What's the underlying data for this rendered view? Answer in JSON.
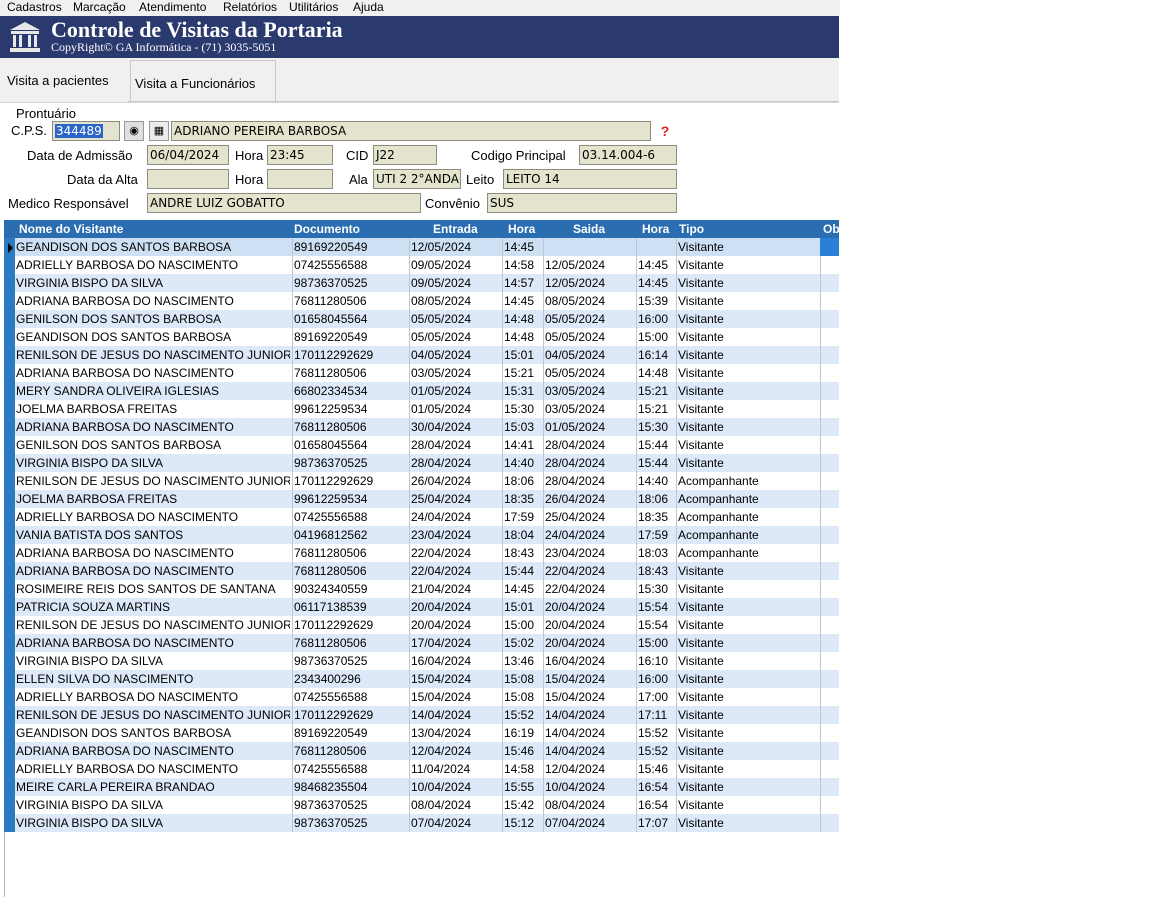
{
  "menu": [
    "Cadastros",
    "Marcação",
    "Atendimento",
    "Relatórios",
    "Utilitários",
    "Ajuda"
  ],
  "header": {
    "title": "Controle de Visitas da Portaria",
    "subtitle": "CopyRight© GA Informática - (71) 3035-5051"
  },
  "tabs": [
    "Visita a pacientes",
    "Visita a Funcionários"
  ],
  "form": {
    "group_label": "Prontuário",
    "cps_label": "C.P.S.",
    "cps_value": "344489",
    "patient_name": "ADRIANO PEREIRA BARBOSA",
    "admission_label": "Data de Admissão",
    "admission_date": "06/04/2024",
    "hora_label": "Hora",
    "admission_time": "23:45",
    "cid_label": "CID",
    "cid_value": "J22",
    "codigo_label": "Codigo Principal",
    "codigo_value": "03.14.004-6",
    "alta_label": "Data da Alta",
    "alta_date": "",
    "alta_hora_label": "Hora",
    "alta_time": "",
    "ala_label": "Ala",
    "ala_value": "UTI 2 2°ANDA",
    "leito_label": "Leito",
    "leito_value": "LEITO 14",
    "medico_label": "Medico Responsável",
    "medico_value": "ANDRE LUIZ GOBATTO",
    "convenio_label": "Convênio",
    "convenio_value": "SUS"
  },
  "grid": {
    "columns": [
      "Nome do Visitante",
      "Documento",
      "Entrada",
      "Hora",
      "Saida",
      "Hora",
      "Tipo",
      "Ob"
    ],
    "rows": [
      [
        "GEANDISON DOS SANTOS BARBOSA",
        "89169220549",
        "12/05/2024",
        "14:45",
        "",
        "",
        "Visitante"
      ],
      [
        "ADRIELLY BARBOSA DO NASCIMENTO",
        "07425556588",
        "09/05/2024",
        "14:58",
        "12/05/2024",
        "14:45",
        "Visitante"
      ],
      [
        "VIRGINIA BISPO DA SILVA",
        "98736370525",
        "09/05/2024",
        "14:57",
        "12/05/2024",
        "14:45",
        "Visitante"
      ],
      [
        "ADRIANA BARBOSA DO NASCIMENTO",
        "76811280506",
        "08/05/2024",
        "14:45",
        "08/05/2024",
        "15:39",
        "Visitante"
      ],
      [
        "GENILSON DOS SANTOS BARBOSA",
        "01658045564",
        "05/05/2024",
        "14:48",
        "05/05/2024",
        "16:00",
        "Visitante"
      ],
      [
        "GEANDISON DOS SANTOS BARBOSA",
        "89169220549",
        "05/05/2024",
        "14:48",
        "05/05/2024",
        "15:00",
        "Visitante"
      ],
      [
        "RENILSON DE JESUS DO NASCIMENTO JUNIOR",
        "170112292629",
        "04/05/2024",
        "15:01",
        "04/05/2024",
        "16:14",
        "Visitante"
      ],
      [
        "ADRIANA BARBOSA DO NASCIMENTO",
        "76811280506",
        "03/05/2024",
        "15:21",
        "05/05/2024",
        "14:48",
        "Visitante"
      ],
      [
        "MERY SANDRA OLIVEIRA IGLESIAS",
        "66802334534",
        "01/05/2024",
        "15:31",
        "03/05/2024",
        "15:21",
        "Visitante"
      ],
      [
        "JOELMA BARBOSA FREITAS",
        "99612259534",
        "01/05/2024",
        "15:30",
        "03/05/2024",
        "15:21",
        "Visitante"
      ],
      [
        "ADRIANA BARBOSA DO NASCIMENTO",
        "76811280506",
        "30/04/2024",
        "15:03",
        "01/05/2024",
        "15:30",
        "Visitante"
      ],
      [
        "GENILSON DOS SANTOS BARBOSA",
        "01658045564",
        "28/04/2024",
        "14:41",
        "28/04/2024",
        "15:44",
        "Visitante"
      ],
      [
        "VIRGINIA BISPO DA SILVA",
        "98736370525",
        "28/04/2024",
        "14:40",
        "28/04/2024",
        "15:44",
        "Visitante"
      ],
      [
        "RENILSON DE JESUS DO NASCIMENTO JUNIOR",
        "170112292629",
        "26/04/2024",
        "18:06",
        "28/04/2024",
        "14:40",
        "Acompanhante"
      ],
      [
        "JOELMA BARBOSA FREITAS",
        "99612259534",
        "25/04/2024",
        "18:35",
        "26/04/2024",
        "18:06",
        "Acompanhante"
      ],
      [
        "ADRIELLY BARBOSA DO NASCIMENTO",
        "07425556588",
        "24/04/2024",
        "17:59",
        "25/04/2024",
        "18:35",
        "Acompanhante"
      ],
      [
        "VANIA BATISTA DOS SANTOS",
        "04196812562",
        "23/04/2024",
        "18:04",
        "24/04/2024",
        "17:59",
        "Acompanhante"
      ],
      [
        "ADRIANA BARBOSA DO NASCIMENTO",
        "76811280506",
        "22/04/2024",
        "18:43",
        "23/04/2024",
        "18:03",
        "Acompanhante"
      ],
      [
        "ADRIANA BARBOSA DO NASCIMENTO",
        "76811280506",
        "22/04/2024",
        "15:44",
        "22/04/2024",
        "18:43",
        "Visitante"
      ],
      [
        "ROSIMEIRE REIS DOS SANTOS DE SANTANA",
        "90324340559",
        "21/04/2024",
        "14:45",
        "22/04/2024",
        "15:30",
        "Visitante"
      ],
      [
        "PATRICIA SOUZA MARTINS",
        "06117138539",
        "20/04/2024",
        "15:01",
        "20/04/2024",
        "15:54",
        "Visitante"
      ],
      [
        "RENILSON DE JESUS DO NASCIMENTO JUNIOR",
        "170112292629",
        "20/04/2024",
        "15:00",
        "20/04/2024",
        "15:54",
        "Visitante"
      ],
      [
        "ADRIANA BARBOSA DO NASCIMENTO",
        "76811280506",
        "17/04/2024",
        "15:02",
        "20/04/2024",
        "15:00",
        "Visitante"
      ],
      [
        "VIRGINIA BISPO DA SILVA",
        "98736370525",
        "16/04/2024",
        "13:46",
        "16/04/2024",
        "16:10",
        "Visitante"
      ],
      [
        "ELLEN SILVA DO NASCIMENTO",
        "2343400296",
        "15/04/2024",
        "15:08",
        "15/04/2024",
        "16:00",
        "Visitante"
      ],
      [
        "ADRIELLY BARBOSA DO NASCIMENTO",
        "07425556588",
        "15/04/2024",
        "15:08",
        "15/04/2024",
        "17:00",
        "Visitante"
      ],
      [
        "RENILSON DE JESUS DO NASCIMENTO JUNIOR",
        "170112292629",
        "14/04/2024",
        "15:52",
        "14/04/2024",
        "17:11",
        "Visitante"
      ],
      [
        "GEANDISON DOS SANTOS BARBOSA",
        "89169220549",
        "13/04/2024",
        "16:19",
        "14/04/2024",
        "15:52",
        "Visitante"
      ],
      [
        "ADRIANA BARBOSA DO NASCIMENTO",
        "76811280506",
        "12/04/2024",
        "15:46",
        "14/04/2024",
        "15:52",
        "Visitante"
      ],
      [
        "ADRIELLY BARBOSA DO NASCIMENTO",
        "07425556588",
        "11/04/2024",
        "14:58",
        "12/04/2024",
        "15:46",
        "Visitante"
      ],
      [
        "MEIRE CARLA PEREIRA BRANDAO",
        "98468235504",
        "10/04/2024",
        "15:55",
        "10/04/2024",
        "16:54",
        "Visitante"
      ],
      [
        "VIRGINIA BISPO DA SILVA",
        "98736370525",
        "08/04/2024",
        "15:42",
        "08/04/2024",
        "16:54",
        "Visitante"
      ],
      [
        "VIRGINIA BISPO DA SILVA",
        "98736370525",
        "07/04/2024",
        "15:12",
        "07/04/2024",
        "17:07",
        "Visitante"
      ]
    ]
  }
}
